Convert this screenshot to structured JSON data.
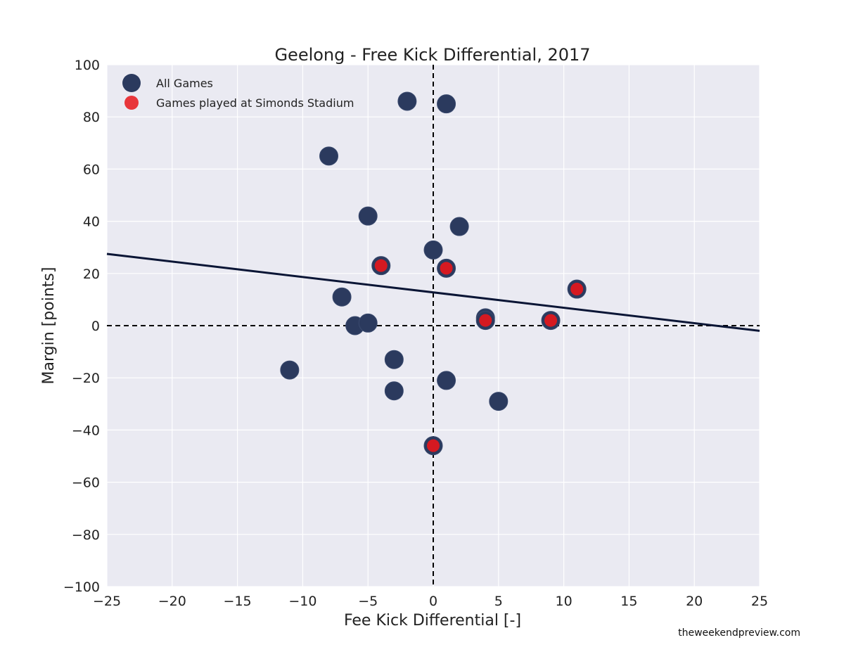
{
  "chart_data": {
    "type": "scatter",
    "title": "Geelong - Free Kick Differential, 2017",
    "xlabel": "Fee Kick Differential [-]",
    "ylabel": "Margin [points]",
    "xlim": [
      -25,
      25
    ],
    "ylim": [
      -100,
      100
    ],
    "xticks": [
      -25,
      -20,
      -15,
      -10,
      -5,
      0,
      5,
      10,
      15,
      20,
      25
    ],
    "yticks": [
      -100,
      -80,
      -60,
      -40,
      -20,
      0,
      20,
      40,
      60,
      80,
      100
    ],
    "xtick_labels": [
      "−25",
      "−20",
      "−15",
      "−10",
      "−5",
      "0",
      "5",
      "10",
      "15",
      "20",
      "25"
    ],
    "ytick_labels": [
      "−100",
      "−80",
      "−60",
      "−40",
      "−20",
      "0",
      "20",
      "40",
      "60",
      "80",
      "100"
    ],
    "grid": true,
    "legend_position": "top-left",
    "background": "#eaeaf2",
    "series": [
      {
        "name": "All Games",
        "color": "#2b3a5e",
        "points": [
          {
            "x": -2,
            "y": 86
          },
          {
            "x": 1,
            "y": 85
          },
          {
            "x": -8,
            "y": 65
          },
          {
            "x": -5,
            "y": 42
          },
          {
            "x": 2,
            "y": 38
          },
          {
            "x": 0,
            "y": 29
          },
          {
            "x": -4,
            "y": 23
          },
          {
            "x": 1,
            "y": 22
          },
          {
            "x": 11,
            "y": 14
          },
          {
            "x": -7,
            "y": 11
          },
          {
            "x": 4,
            "y": 3
          },
          {
            "x": 4,
            "y": 2
          },
          {
            "x": 9,
            "y": 2
          },
          {
            "x": -6,
            "y": 0
          },
          {
            "x": -5,
            "y": 1
          },
          {
            "x": -11,
            "y": -17
          },
          {
            "x": -3,
            "y": -13
          },
          {
            "x": 1,
            "y": -21
          },
          {
            "x": -3,
            "y": -25
          },
          {
            "x": 5,
            "y": -29
          },
          {
            "x": 0,
            "y": -46
          }
        ]
      },
      {
        "name": "Games played at Simonds Stadium",
        "color": "#e8161b",
        "points": [
          {
            "x": -4,
            "y": 23
          },
          {
            "x": 1,
            "y": 22
          },
          {
            "x": 11,
            "y": 14
          },
          {
            "x": 4,
            "y": 2
          },
          {
            "x": 9,
            "y": 2
          },
          {
            "x": 0,
            "y": -46
          }
        ]
      }
    ],
    "trend_line": {
      "x": [
        -25,
        25
      ],
      "y": [
        27.5,
        -2
      ],
      "color": "#0a1535"
    },
    "reference_lines": {
      "x": 0,
      "y": 0
    },
    "source_text": "theweekendpreview.com"
  }
}
